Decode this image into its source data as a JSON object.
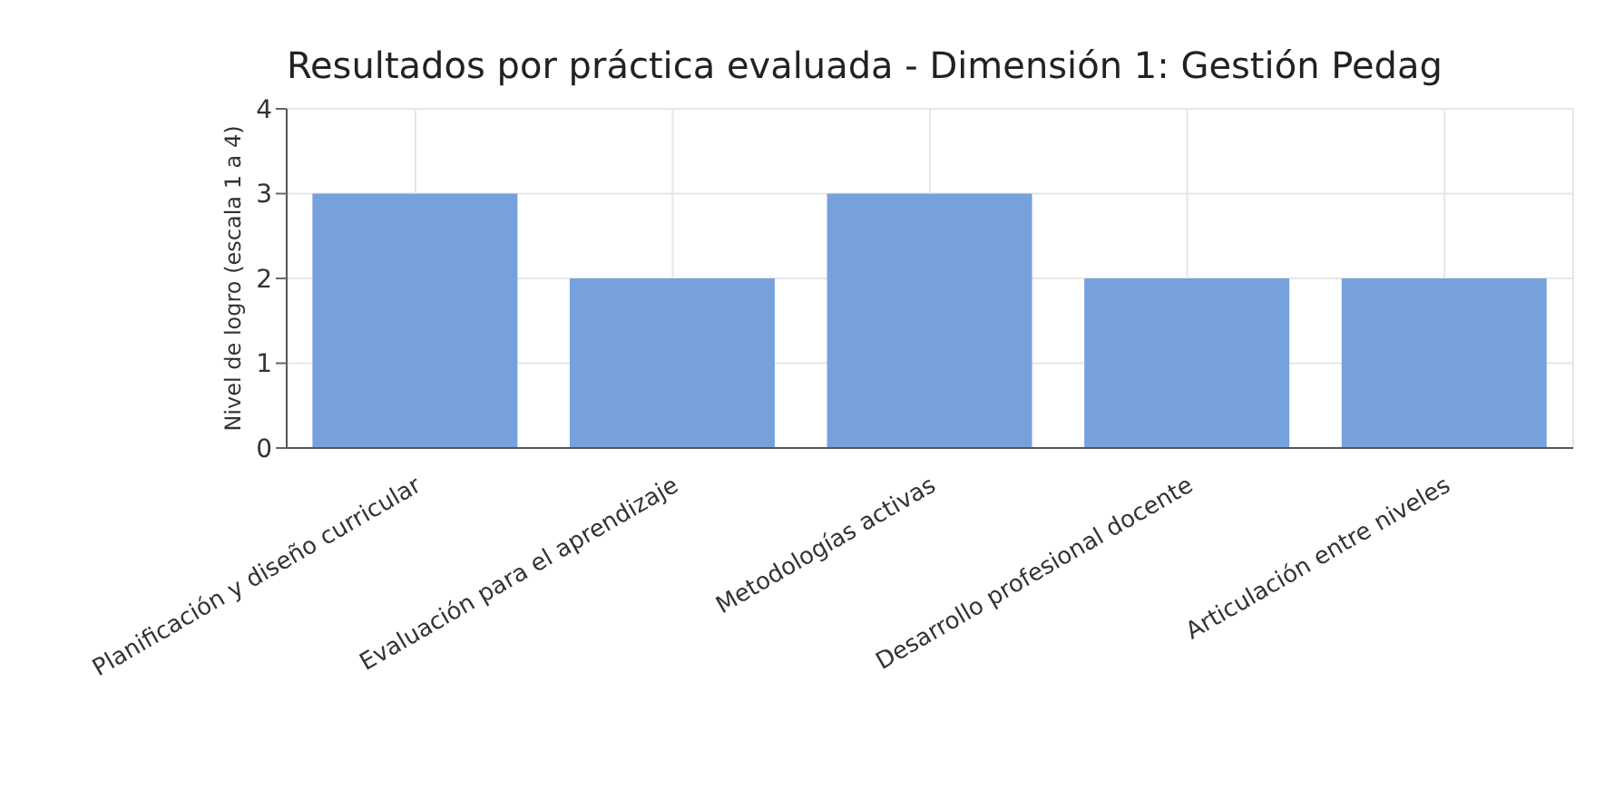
{
  "chart_data": {
    "type": "bar",
    "title": "Resultados por práctica evaluada - Dimensión 1: Gestión Pedag",
    "ylabel": "Nivel de logro (escala 1 a 4)",
    "categories": [
      "Planificación y diseño curricular",
      "Evaluación para el aprendizaje",
      "Metodologías activas",
      "Desarrollo profesional docente",
      "Articulación entre niveles"
    ],
    "values": [
      3,
      2,
      3,
      2,
      2
    ],
    "color": "#77a1dd",
    "ylim": [
      0,
      4
    ],
    "yticks": [
      0,
      1,
      2,
      3,
      4
    ],
    "grid": true
  }
}
